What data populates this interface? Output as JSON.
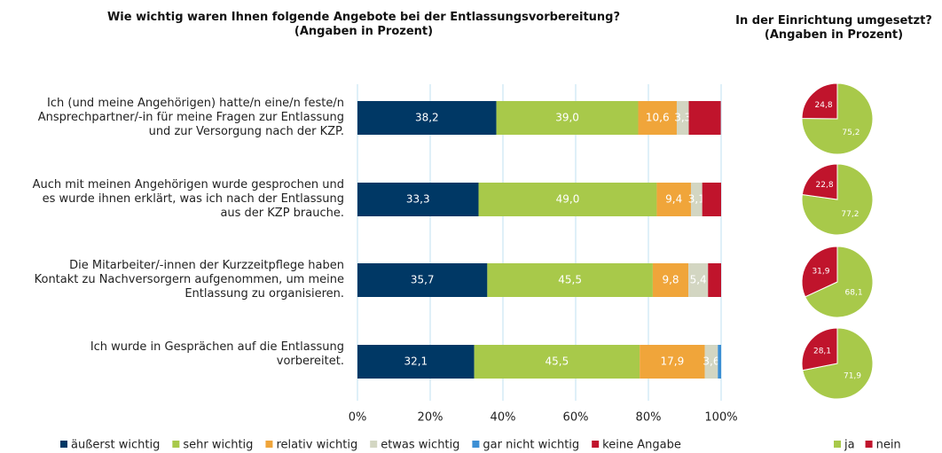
{
  "chart_data": [
    {
      "type": "bar",
      "orientation": "horizontal",
      "stacked": true,
      "title": "Wie wichtig waren Ihnen folgende Angebote bei der Entlassungsvorbereitung?\n(Angaben in Prozent)",
      "categories": [
        "Ich (und meine Angehörigen) hatte/n eine/n feste/n\nAnsprechpartner/-in für meine Fragen zur Entlassung\nund zur Versorgung nach der KZP.",
        "Auch mit meinen Angehörigen wurde gesprochen und\nes wurde ihnen erklärt, was ich nach der Entlassung\naus der KZP brauche.",
        "Die Mitarbeiter/-innen der Kurzzeitpflege haben\nKontakt zu Nachversorgern aufgenommen, um meine\nEntlassung zu organisieren.",
        "Ich wurde in Gesprächen auf die Entlassung\nvorbereitet."
      ],
      "series": [
        {
          "name": "äußerst wichtig",
          "color": "#003865",
          "values": [
            38.2,
            33.3,
            35.7,
            32.1
          ],
          "value_labels": [
            "38,2",
            "33,3",
            "35,7",
            "32,1"
          ]
        },
        {
          "name": "sehr wichtig",
          "color": "#a8c94a",
          "values": [
            39.0,
            49.0,
            45.5,
            45.5
          ],
          "value_labels": [
            "39,0",
            "49,0",
            "45,5",
            "45,5"
          ]
        },
        {
          "name": "relativ wichtig",
          "color": "#f0a53a",
          "values": [
            10.6,
            9.4,
            9.8,
            17.9
          ],
          "value_labels": [
            "10,6",
            "9,4",
            "9,8",
            "17,9"
          ]
        },
        {
          "name": "etwas wichtig",
          "color": "#d3d6c2",
          "values": [
            3.3,
            3.1,
            5.4,
            3.6
          ],
          "value_labels": [
            "3,3",
            "3,1",
            "5,4",
            "3,6"
          ]
        },
        {
          "name": "gar nicht wichtig",
          "color": "#3c8fd4",
          "values": [
            0,
            0,
            0,
            0.9
          ],
          "value_labels": [
            null,
            null,
            null,
            null
          ]
        },
        {
          "name": "keine Angabe",
          "color": "#c0142c",
          "values": [
            8.8,
            5.2,
            3.6,
            0
          ],
          "value_labels": [
            null,
            null,
            null,
            null
          ]
        }
      ],
      "xlim": [
        0,
        100
      ],
      "xticks": [
        {
          "value": 0,
          "label": "0%"
        },
        {
          "value": 20,
          "label": "20%"
        },
        {
          "value": 40,
          "label": "40%"
        },
        {
          "value": 60,
          "label": "60%"
        },
        {
          "value": 80,
          "label": "80%"
        },
        {
          "value": 100,
          "label": "100%"
        }
      ],
      "grid": true,
      "legend": "bottom"
    },
    {
      "type": "pie",
      "title": "In der Einrichtung umgesetzt?\n(Angaben in Prozent)",
      "categories": [
        "ja",
        "nein"
      ],
      "colors": [
        "#a8c94a",
        "#c0142c"
      ],
      "series": [
        {
          "values": [
            75.2,
            24.8
          ],
          "value_labels": [
            "75,2",
            "24,8"
          ]
        },
        {
          "values": [
            77.2,
            22.8
          ],
          "value_labels": [
            "77,2",
            "22,8"
          ]
        },
        {
          "values": [
            68.1,
            31.9
          ],
          "value_labels": [
            "68,1",
            "31,9"
          ]
        },
        {
          "values": [
            71.9,
            28.1
          ],
          "value_labels": [
            "71,9",
            "28,1"
          ]
        }
      ],
      "legend": "bottom"
    }
  ]
}
